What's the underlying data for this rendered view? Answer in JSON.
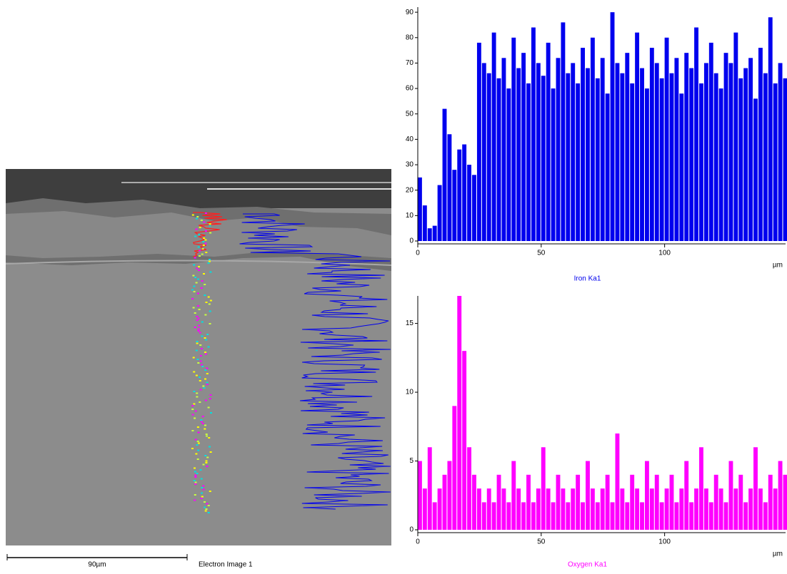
{
  "image": {
    "scale_bar": "90µm",
    "caption": "Electron Image 1"
  },
  "chart_data": [
    {
      "type": "bar",
      "title": "Iron Ka1",
      "x_label": "µm",
      "color": "#0000ee",
      "x": [
        0,
        2,
        4,
        6,
        8,
        10,
        12,
        14,
        16,
        18,
        20,
        22,
        24,
        26,
        28,
        30,
        32,
        34,
        36,
        38,
        40,
        42,
        44,
        46,
        48,
        50,
        52,
        54,
        56,
        58,
        60,
        62,
        64,
        66,
        68,
        70,
        72,
        74,
        76,
        78,
        80,
        82,
        84,
        86,
        88,
        90,
        92,
        94,
        96,
        98,
        100,
        102,
        104,
        106,
        108,
        110,
        112,
        114,
        116,
        118,
        120,
        122,
        124,
        126,
        128,
        130,
        132,
        134,
        136,
        138,
        140,
        142,
        144,
        146,
        148
      ],
      "values": [
        25,
        14,
        5,
        6,
        22,
        52,
        42,
        28,
        36,
        38,
        30,
        26,
        78,
        70,
        66,
        82,
        64,
        72,
        60,
        80,
        68,
        74,
        62,
        84,
        70,
        65,
        78,
        60,
        72,
        86,
        66,
        70,
        62,
        76,
        68,
        80,
        64,
        72,
        58,
        90,
        70,
        66,
        74,
        62,
        82,
        68,
        60,
        76,
        70,
        64,
        80,
        66,
        72,
        58,
        74,
        68,
        84,
        62,
        70,
        78,
        66,
        60,
        74,
        70,
        82,
        64,
        68,
        72,
        56,
        76,
        66,
        88,
        62,
        70,
        64
      ],
      "xlim": [
        0,
        149
      ],
      "ylim": [
        0,
        92
      ],
      "xticks": [
        0,
        50,
        100
      ],
      "yticks": [
        0,
        10,
        20,
        30,
        40,
        50,
        60,
        70,
        80,
        90
      ]
    },
    {
      "type": "bar",
      "title": "Oxygen Ka1",
      "x_label": "µm",
      "color": "#ff00ff",
      "x": [
        0,
        2,
        4,
        6,
        8,
        10,
        12,
        14,
        16,
        18,
        20,
        22,
        24,
        26,
        28,
        30,
        32,
        34,
        36,
        38,
        40,
        42,
        44,
        46,
        48,
        50,
        52,
        54,
        56,
        58,
        60,
        62,
        64,
        66,
        68,
        70,
        72,
        74,
        76,
        78,
        80,
        82,
        84,
        86,
        88,
        90,
        92,
        94,
        96,
        98,
        100,
        102,
        104,
        106,
        108,
        110,
        112,
        114,
        116,
        118,
        120,
        122,
        124,
        126,
        128,
        130,
        132,
        134,
        136,
        138,
        140,
        142,
        144,
        146,
        148
      ],
      "values": [
        5,
        3,
        6,
        2,
        3,
        4,
        5,
        9,
        17,
        13,
        6,
        4,
        3,
        2,
        3,
        2,
        4,
        3,
        2,
        5,
        3,
        2,
        4,
        2,
        3,
        6,
        3,
        2,
        4,
        3,
        2,
        3,
        4,
        2,
        5,
        3,
        2,
        3,
        4,
        2,
        7,
        3,
        2,
        4,
        3,
        2,
        5,
        3,
        4,
        2,
        3,
        4,
        2,
        3,
        5,
        2,
        3,
        6,
        3,
        2,
        4,
        3,
        2,
        5,
        3,
        4,
        2,
        3,
        6,
        3,
        2,
        4,
        3,
        5,
        4
      ],
      "xlim": [
        0,
        149
      ],
      "ylim": [
        0,
        17
      ],
      "xticks": [
        0,
        50,
        100
      ],
      "yticks": [
        0,
        5,
        10,
        15
      ]
    }
  ]
}
